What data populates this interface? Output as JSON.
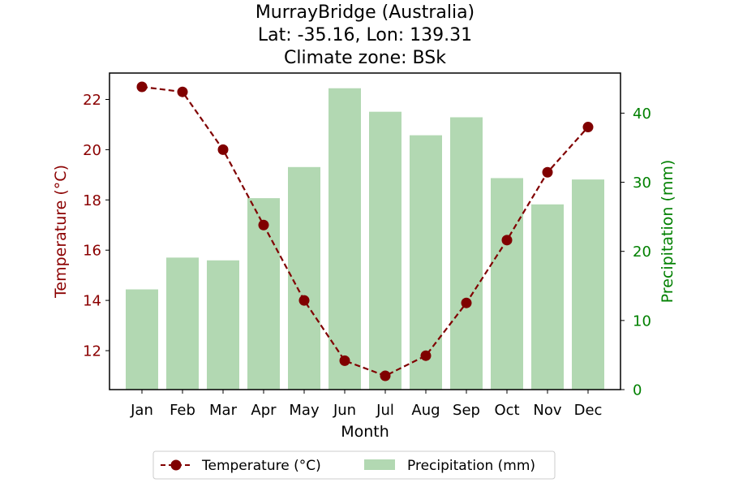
{
  "chart_data": {
    "type": "bar+line",
    "title_lines": [
      "MurrayBridge (Australia)",
      "Lat: -35.16, Lon: 139.31",
      "Climate zone: BSk"
    ],
    "xlabel": "Month",
    "ylabel_left": "Temperature (°C)",
    "ylabel_right": "Precipitation (mm)",
    "categories": [
      "Jan",
      "Feb",
      "Mar",
      "Apr",
      "May",
      "Jun",
      "Jul",
      "Aug",
      "Sep",
      "Oct",
      "Nov",
      "Dec"
    ],
    "temperature": {
      "name": "Temperature (°C)",
      "values": [
        22.5,
        22.3,
        20.0,
        17.0,
        14.0,
        11.6,
        11.0,
        11.8,
        13.9,
        16.4,
        19.1,
        20.9
      ],
      "color": "#800000",
      "ylim": [
        10.45,
        23.05
      ],
      "ticks": [
        12,
        14,
        16,
        18,
        20,
        22
      ]
    },
    "precipitation": {
      "name": "Precipitation (mm)",
      "values": [
        14.5,
        19.1,
        18.7,
        27.7,
        32.2,
        43.6,
        40.2,
        36.8,
        39.4,
        30.6,
        26.8,
        30.4
      ],
      "color": "#b2d8b2",
      "ylim": [
        0,
        45.8
      ],
      "ticks": [
        0,
        10,
        20,
        30,
        40
      ]
    },
    "axis_label_colors": {
      "left": "#8b0000",
      "right": "#008000"
    },
    "grid": false,
    "legend_placement": "bottom-center"
  }
}
